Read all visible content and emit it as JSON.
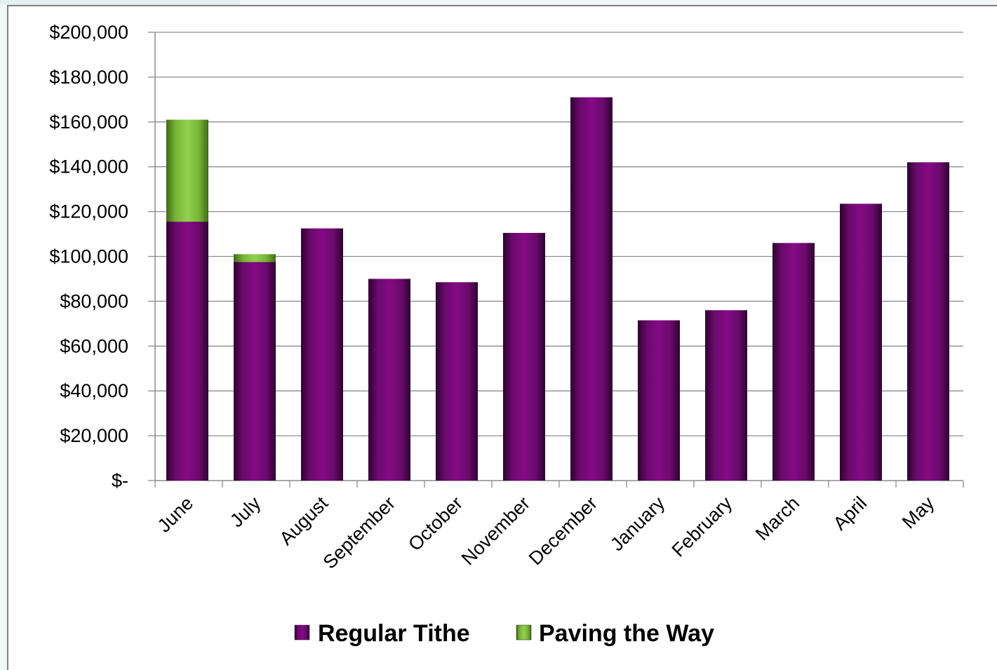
{
  "chart_data": {
    "type": "bar",
    "stacked": true,
    "categories": [
      "June",
      "July",
      "August",
      "September",
      "October",
      "November",
      "December",
      "January",
      "February",
      "March",
      "April",
      "May"
    ],
    "series": [
      {
        "name": "Regular Tithe",
        "color": "#7a0f7a",
        "values": [
          115500,
          97500,
          112500,
          90000,
          88500,
          110500,
          171000,
          71500,
          76000,
          106000,
          123500,
          142000
        ]
      },
      {
        "name": "Paving the Way",
        "color": "#8cc63f",
        "values": [
          45500,
          3500,
          0,
          0,
          0,
          0,
          0,
          0,
          0,
          0,
          0,
          0
        ]
      }
    ],
    "yticks": [
      "$-",
      "$20,000",
      "$40,000",
      "$60,000",
      "$80,000",
      "$100,000",
      "$120,000",
      "$140,000",
      "$160,000",
      "$180,000",
      "$200,000"
    ],
    "ylim": [
      0,
      200000
    ],
    "grid": true,
    "legend_position": "bottom"
  }
}
